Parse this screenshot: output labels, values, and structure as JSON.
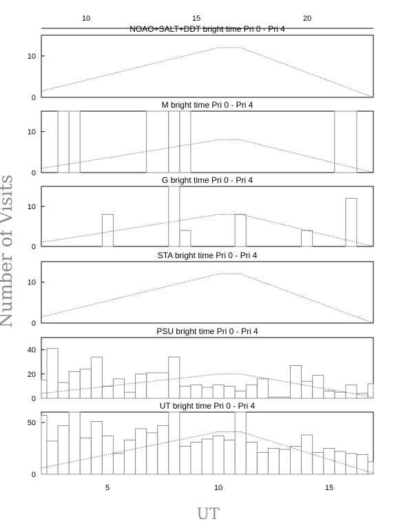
{
  "figure": {
    "ylabel": "Number of Visits",
    "xlabel": "UT",
    "top_axis_ticks": [
      "10",
      "15",
      "20"
    ],
    "bottom_axis_ticks": [
      "5",
      "10",
      "15"
    ]
  },
  "chart_data": [
    {
      "type": "bar",
      "title": "NOAO+SALT+DDT    bright time Pri 0 - Pri 4",
      "xlabel": "",
      "ylabel": "",
      "xlim": [
        2,
        17
      ],
      "ylim": [
        0,
        15
      ],
      "yticks": [
        0,
        10
      ],
      "bins": [],
      "curve": [
        [
          2,
          1.5
        ],
        [
          10,
          12
        ],
        [
          11,
          12
        ],
        [
          17,
          0
        ]
      ]
    },
    {
      "type": "bar",
      "title": "M    bright time Pri 0 - Pri 4",
      "xlabel": "",
      "ylabel": "",
      "xlim": [
        2,
        17
      ],
      "ylim": [
        0,
        15
      ],
      "yticks": [
        0,
        10
      ],
      "bins": [
        {
          "x0": 2.75,
          "x1": 3.25,
          "y": 15
        },
        {
          "x0": 3.25,
          "x1": 3.75,
          "y": 15
        },
        {
          "x0": 6.75,
          "x1": 7.75,
          "y": 15
        },
        {
          "x0": 7.75,
          "x1": 8.25,
          "y": 15
        },
        {
          "x0": 8.25,
          "x1": 8.75,
          "y": 15
        },
        {
          "x0": 15.25,
          "x1": 16.25,
          "y": 15
        }
      ],
      "curve": [
        [
          2,
          1
        ],
        [
          10,
          8
        ],
        [
          11,
          8
        ],
        [
          17,
          0
        ]
      ]
    },
    {
      "type": "bar",
      "title": "G    bright time Pri 0 - Pri 4",
      "xlabel": "",
      "ylabel": "",
      "xlim": [
        2,
        17
      ],
      "ylim": [
        0,
        15
      ],
      "yticks": [
        0,
        10
      ],
      "bins": [
        {
          "x0": 4.75,
          "x1": 5.25,
          "y": 8
        },
        {
          "x0": 7.75,
          "x1": 8.25,
          "y": 15
        },
        {
          "x0": 8.25,
          "x1": 8.75,
          "y": 4
        },
        {
          "x0": 10.75,
          "x1": 11.25,
          "y": 8
        },
        {
          "x0": 13.75,
          "x1": 14.25,
          "y": 4
        },
        {
          "x0": 15.75,
          "x1": 16.25,
          "y": 12
        }
      ],
      "curve": [
        [
          2,
          1
        ],
        [
          10,
          8
        ],
        [
          11,
          8
        ],
        [
          17,
          0
        ]
      ]
    },
    {
      "type": "bar",
      "title": "STA    bright time Pri 0 - Pri 4",
      "xlabel": "",
      "ylabel": "",
      "xlim": [
        2,
        17
      ],
      "ylim": [
        0,
        15
      ],
      "yticks": [
        0,
        10
      ],
      "bins": [],
      "curve": [
        [
          2,
          1.5
        ],
        [
          10,
          12
        ],
        [
          11,
          12
        ],
        [
          17,
          0
        ]
      ]
    },
    {
      "type": "bar",
      "title": "PSU    bright time Pri 0 - Pri 4",
      "xlabel": "",
      "ylabel": "",
      "xlim": [
        2,
        17
      ],
      "ylim": [
        0,
        50
      ],
      "yticks": [
        0,
        20,
        40
      ],
      "bins": [
        {
          "x0": 2.0,
          "x1": 2.25,
          "y": 15
        },
        {
          "x0": 2.25,
          "x1": 2.75,
          "y": 41
        },
        {
          "x0": 2.75,
          "x1": 3.25,
          "y": 13
        },
        {
          "x0": 3.25,
          "x1": 3.75,
          "y": 22
        },
        {
          "x0": 3.75,
          "x1": 4.25,
          "y": 24
        },
        {
          "x0": 4.25,
          "x1": 4.75,
          "y": 34
        },
        {
          "x0": 4.75,
          "x1": 5.25,
          "y": 10
        },
        {
          "x0": 5.25,
          "x1": 5.75,
          "y": 16
        },
        {
          "x0": 5.75,
          "x1": 6.25,
          "y": 5
        },
        {
          "x0": 6.25,
          "x1": 6.75,
          "y": 20
        },
        {
          "x0": 6.75,
          "x1": 7.75,
          "y": 21
        },
        {
          "x0": 7.75,
          "x1": 8.25,
          "y": 34
        },
        {
          "x0": 8.25,
          "x1": 8.75,
          "y": 10
        },
        {
          "x0": 8.75,
          "x1": 9.25,
          "y": 11
        },
        {
          "x0": 9.25,
          "x1": 9.75,
          "y": 9
        },
        {
          "x0": 9.75,
          "x1": 10.25,
          "y": 11
        },
        {
          "x0": 10.25,
          "x1": 10.75,
          "y": 10
        },
        {
          "x0": 10.75,
          "x1": 11.25,
          "y": 6
        },
        {
          "x0": 11.25,
          "x1": 11.75,
          "y": 11
        },
        {
          "x0": 11.75,
          "x1": 12.25,
          "y": 16
        },
        {
          "x0": 12.25,
          "x1": 13.25,
          "y": 1
        },
        {
          "x0": 13.25,
          "x1": 13.75,
          "y": 27
        },
        {
          "x0": 13.75,
          "x1": 14.25,
          "y": 14
        },
        {
          "x0": 14.25,
          "x1": 14.75,
          "y": 19
        },
        {
          "x0": 14.75,
          "x1": 15.25,
          "y": 6
        },
        {
          "x0": 15.25,
          "x1": 15.75,
          "y": 5
        },
        {
          "x0": 15.75,
          "x1": 16.25,
          "y": 11
        },
        {
          "x0": 16.25,
          "x1": 16.75,
          "y": 4
        },
        {
          "x0": 16.75,
          "x1": 17.0,
          "y": 12
        }
      ],
      "curve": [
        [
          2,
          4
        ],
        [
          10,
          20
        ],
        [
          11,
          20
        ],
        [
          17,
          1
        ]
      ]
    },
    {
      "type": "bar",
      "title": "UT    bright time Pri 0 - Pri 4",
      "xlabel": "",
      "ylabel": "",
      "xlim": [
        2,
        17
      ],
      "ylim": [
        0,
        60
      ],
      "yticks": [
        0,
        50
      ],
      "bins": [
        {
          "x0": 2.0,
          "x1": 2.25,
          "y": 57
        },
        {
          "x0": 2.25,
          "x1": 2.75,
          "y": 32
        },
        {
          "x0": 2.75,
          "x1": 3.25,
          "y": 47
        },
        {
          "x0": 3.25,
          "x1": 3.75,
          "y": 60
        },
        {
          "x0": 3.75,
          "x1": 4.25,
          "y": 35
        },
        {
          "x0": 4.25,
          "x1": 4.75,
          "y": 51
        },
        {
          "x0": 4.75,
          "x1": 5.25,
          "y": 37
        },
        {
          "x0": 5.25,
          "x1": 5.75,
          "y": 20
        },
        {
          "x0": 5.75,
          "x1": 6.25,
          "y": 33
        },
        {
          "x0": 6.25,
          "x1": 6.75,
          "y": 44
        },
        {
          "x0": 6.75,
          "x1": 7.25,
          "y": 40
        },
        {
          "x0": 7.25,
          "x1": 7.75,
          "y": 47
        },
        {
          "x0": 7.75,
          "x1": 8.25,
          "y": 60
        },
        {
          "x0": 8.25,
          "x1": 8.75,
          "y": 27
        },
        {
          "x0": 8.75,
          "x1": 9.25,
          "y": 31
        },
        {
          "x0": 9.25,
          "x1": 9.75,
          "y": 34
        },
        {
          "x0": 9.75,
          "x1": 10.25,
          "y": 37
        },
        {
          "x0": 10.25,
          "x1": 10.75,
          "y": 33
        },
        {
          "x0": 10.75,
          "x1": 11.25,
          "y": 60
        },
        {
          "x0": 11.25,
          "x1": 11.75,
          "y": 31
        },
        {
          "x0": 11.75,
          "x1": 12.25,
          "y": 21
        },
        {
          "x0": 12.25,
          "x1": 12.75,
          "y": 25
        },
        {
          "x0": 12.75,
          "x1": 13.25,
          "y": 24
        },
        {
          "x0": 13.25,
          "x1": 13.75,
          "y": 27
        },
        {
          "x0": 13.75,
          "x1": 14.25,
          "y": 38
        },
        {
          "x0": 14.25,
          "x1": 14.75,
          "y": 21
        },
        {
          "x0": 14.75,
          "x1": 15.25,
          "y": 25
        },
        {
          "x0": 15.25,
          "x1": 15.75,
          "y": 22
        },
        {
          "x0": 15.75,
          "x1": 16.25,
          "y": 20
        },
        {
          "x0": 16.25,
          "x1": 16.75,
          "y": 19
        },
        {
          "x0": 16.75,
          "x1": 17.0,
          "y": 12
        }
      ],
      "curve": [
        [
          2,
          6
        ],
        [
          10,
          41
        ],
        [
          11,
          41
        ],
        [
          17,
          1
        ]
      ]
    }
  ]
}
